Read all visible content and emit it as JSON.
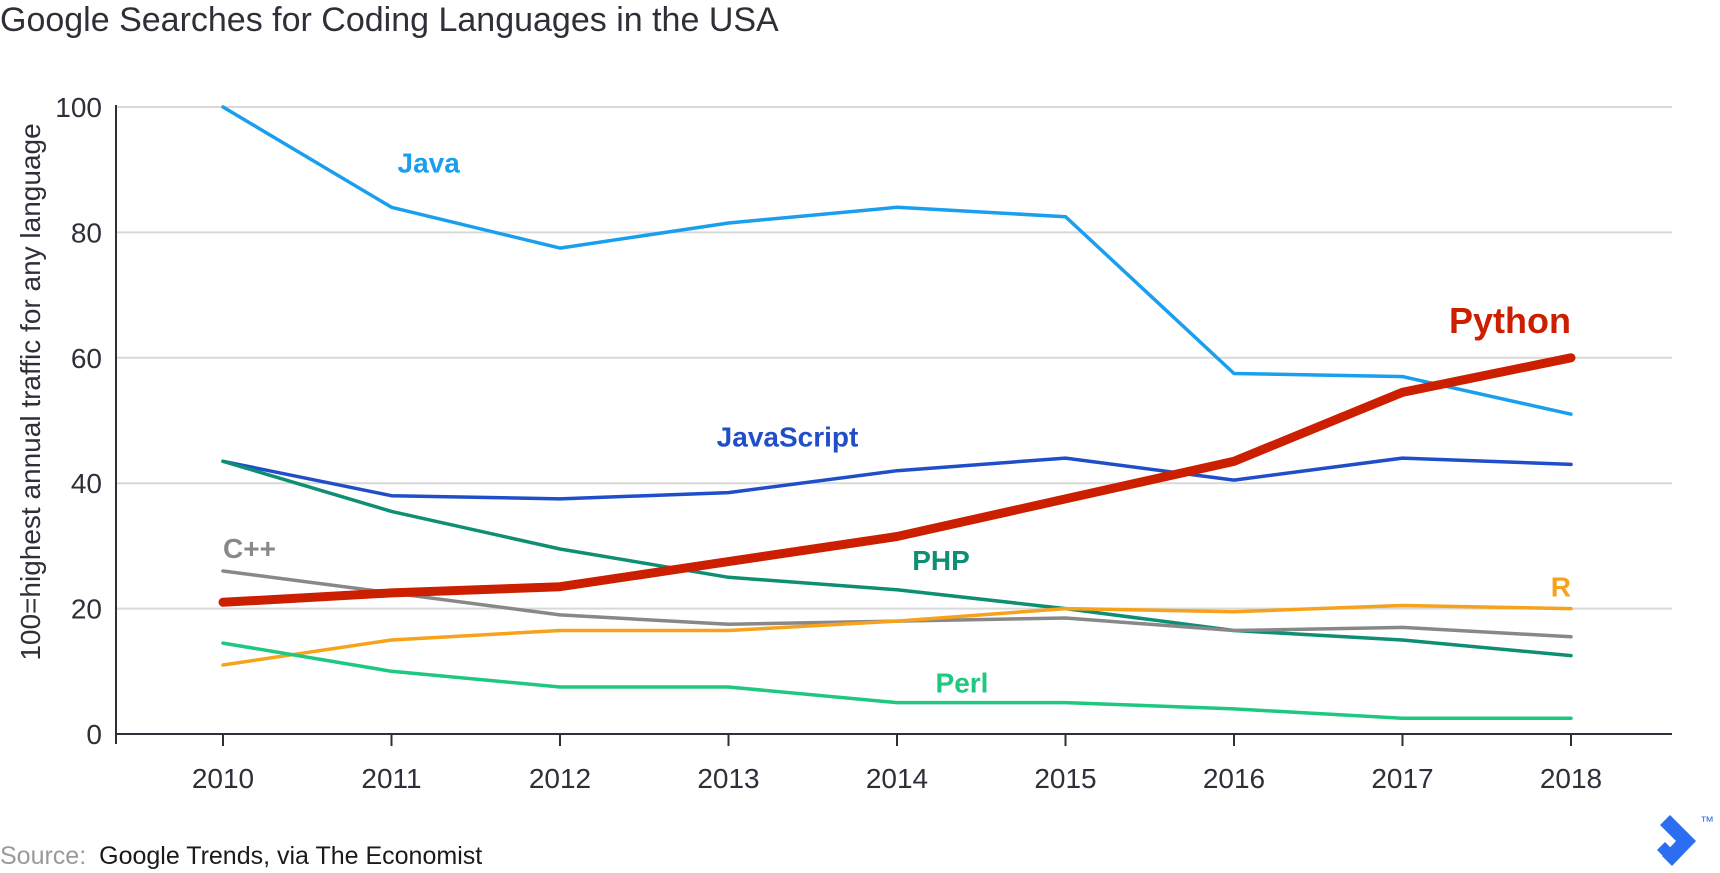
{
  "chart_data": {
    "type": "line",
    "title": "Google Searches for Coding Languages in the USA",
    "xlabel": "",
    "ylabel": "100=highest annual traffic for any language",
    "x": [
      "2010",
      "2011",
      "2012",
      "2013",
      "2014",
      "2015",
      "2016",
      "2017",
      "2018"
    ],
    "ylim": [
      0,
      100
    ],
    "yticks": [
      "0",
      "20",
      "40",
      "60",
      "80",
      "100"
    ],
    "grid": true,
    "series": [
      {
        "name": "Java",
        "color": "#1a9fef",
        "values": [
          100,
          84,
          77.5,
          81.5,
          84,
          82.5,
          57.5,
          57,
          51
        ],
        "emphasis": false
      },
      {
        "name": "JavaScript",
        "color": "#1f4ec8",
        "values": [
          43.5,
          38,
          37.5,
          38.5,
          42,
          44,
          40.5,
          44,
          43
        ],
        "emphasis": false
      },
      {
        "name": "PHP",
        "color": "#0e8f74",
        "values": [
          43.5,
          35.5,
          29.5,
          25,
          23,
          20,
          16.5,
          15,
          12.5
        ],
        "emphasis": false
      },
      {
        "name": "C++",
        "color": "#888888",
        "values": [
          26,
          22.5,
          19,
          17.5,
          18,
          18.5,
          16.5,
          17,
          15.5
        ],
        "emphasis": false
      },
      {
        "name": "R",
        "color": "#f7a21b",
        "values": [
          11,
          15,
          16.5,
          16.5,
          18,
          20,
          19.5,
          20.5,
          20
        ],
        "emphasis": false
      },
      {
        "name": "Perl",
        "color": "#1ec87e",
        "values": [
          14.5,
          10,
          7.5,
          7.5,
          5,
          5,
          4,
          2.5,
          2.5
        ],
        "emphasis": false
      },
      {
        "name": "Python",
        "color": "#cc1f00",
        "values": [
          21,
          22.5,
          23.5,
          27.5,
          31.5,
          37.5,
          43.5,
          54.5,
          60
        ],
        "emphasis": true
      }
    ]
  },
  "source": {
    "prefix": "Source:",
    "text": "Google Trends, via The Economist"
  },
  "logo": {
    "name": "toptal-logo",
    "trademark": "™",
    "color": "#2c6ef2"
  }
}
